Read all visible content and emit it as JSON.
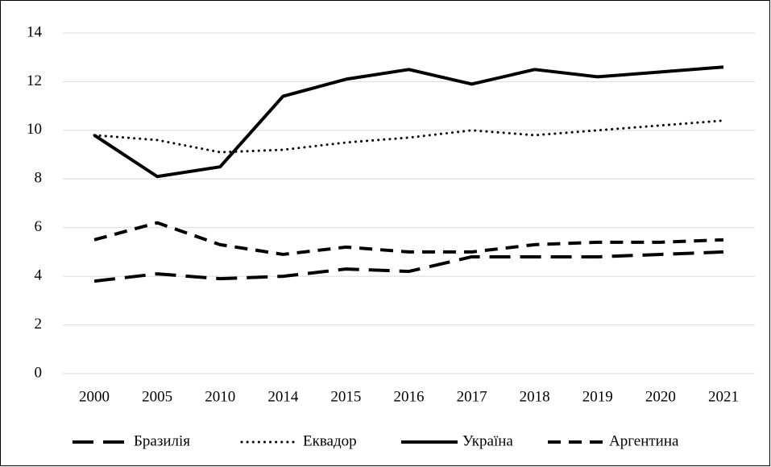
{
  "chart_data": {
    "type": "line",
    "categories": [
      "2000",
      "2005",
      "2010",
      "2014",
      "2015",
      "2016",
      "2017",
      "2018",
      "2019",
      "2020",
      "2021"
    ],
    "series": [
      {
        "name": "Бразилія",
        "color": "#000000",
        "style": "long-dash",
        "values": [
          3.8,
          4.1,
          3.9,
          4.0,
          4.3,
          4.2,
          4.8,
          4.8,
          4.8,
          4.9,
          5.0
        ]
      },
      {
        "name": "Еквадор",
        "color": "#000000",
        "style": "dotted",
        "values": [
          9.8,
          9.6,
          9.1,
          9.2,
          9.5,
          9.7,
          10.0,
          9.8,
          10.0,
          10.2,
          10.4
        ]
      },
      {
        "name": "Україна",
        "color": "#000000",
        "style": "solid",
        "values": [
          9.8,
          8.1,
          8.5,
          11.4,
          12.1,
          12.5,
          11.9,
          12.5,
          12.2,
          12.4,
          12.6
        ]
      },
      {
        "name": "Аргентина",
        "color": "#000000",
        "style": "dash",
        "values": [
          5.5,
          6.2,
          5.3,
          4.9,
          5.2,
          5.0,
          5.0,
          5.3,
          5.4,
          5.4,
          5.5
        ]
      }
    ],
    "ylim": [
      0,
      14
    ],
    "yticks": [
      0,
      2,
      4,
      6,
      8,
      10,
      12,
      14
    ],
    "grid": true,
    "legend": "bottom"
  }
}
